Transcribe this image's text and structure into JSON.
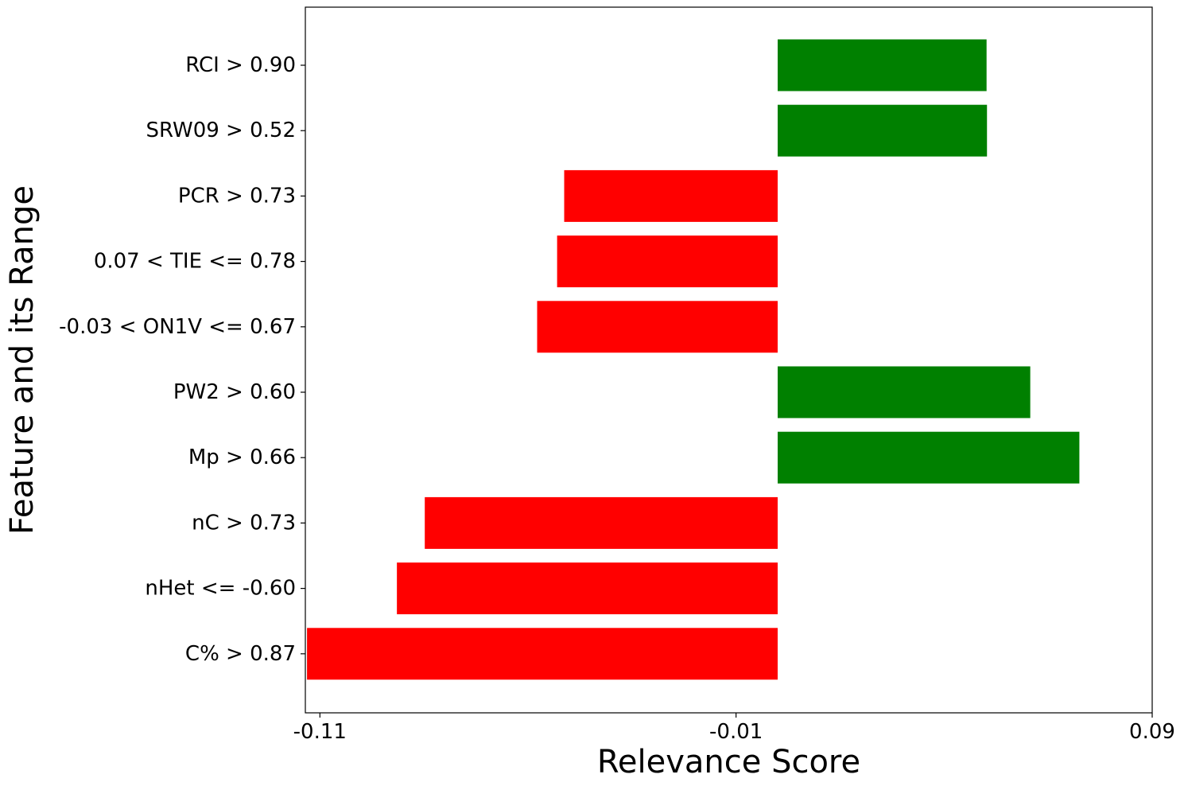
{
  "chart_data": {
    "type": "bar",
    "orientation": "horizontal",
    "xlabel": "Relevance Score",
    "ylabel": "Feature and its Range",
    "xlim": [
      -0.1135,
      0.09
    ],
    "xticks": [
      -0.11,
      -0.01,
      0.09
    ],
    "xtick_labels": [
      "-0.11",
      "-0.01",
      "0.09"
    ],
    "baseline": 0.0,
    "grid": false,
    "legend": "none",
    "categories": [
      "RCI > 0.90",
      "SRW09 > 0.52",
      "PCR > 0.73",
      "0.07 < TIE <= 0.78",
      "-0.03 < ON1V <= 0.67",
      "PW2 > 0.60",
      "Mp > 0.66",
      "nC > 0.73",
      "nHet <= -0.60",
      "C% > 0.87"
    ],
    "values": [
      0.0502,
      0.0503,
      -0.0513,
      -0.053,
      -0.0578,
      0.0607,
      0.0725,
      -0.0848,
      -0.0915,
      -0.1131
    ],
    "colors": {
      "positive": "#008000",
      "negative": "#ff0000"
    }
  }
}
